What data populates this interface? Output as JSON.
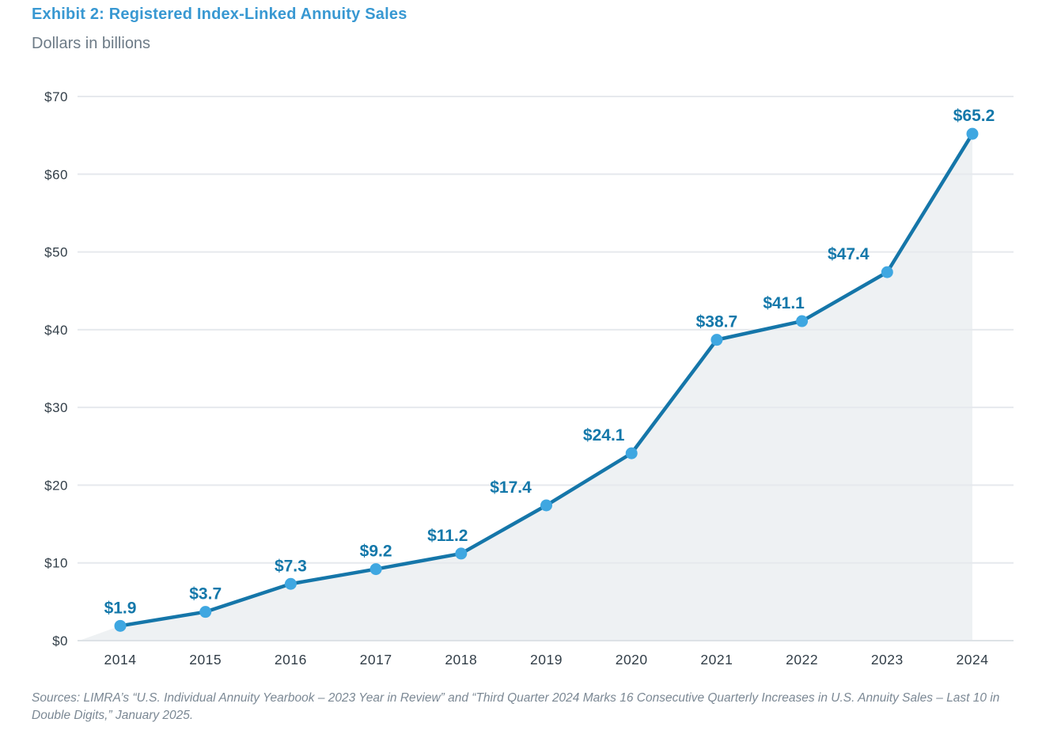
{
  "header": {
    "title": "Exhibit 2: Registered Index-Linked Annuity Sales",
    "subtitle": "Dollars in billions"
  },
  "chart_data": {
    "type": "line",
    "title": "Exhibit 2: Registered Index-Linked Annuity Sales",
    "subtitle": "Dollars in billions",
    "categories": [
      "2014",
      "2015",
      "2016",
      "2017",
      "2018",
      "2019",
      "2020",
      "2021",
      "2022",
      "2023",
      "2024"
    ],
    "values": [
      1.9,
      3.7,
      7.3,
      9.2,
      11.2,
      17.4,
      24.1,
      38.7,
      41.1,
      47.4,
      65.2
    ],
    "point_labels": [
      "$1.9",
      "$3.7",
      "$7.3",
      "$9.2",
      "$11.2",
      "$17.4",
      "$24.1",
      "$38.7",
      "$41.1",
      "$47.4",
      "$65.2"
    ],
    "y_tick_values": [
      0,
      10,
      20,
      30,
      40,
      50,
      60,
      70
    ],
    "y_tick_labels": [
      "$0",
      "$10",
      "$20",
      "$30",
      "$40",
      "$50",
      "$60",
      "$70"
    ],
    "ylim": [
      0,
      70
    ],
    "xlabel": "",
    "ylabel": "",
    "grid": "horizontal",
    "legend": "none",
    "area_fill": true,
    "colors": {
      "line": "#1576a9",
      "marker": "#3fa7e1",
      "area": "#eef1f3",
      "grid": "#e6e9ed",
      "baseline": "#dde2e6",
      "tick_text": "#323e48",
      "point_label_text": "#1478aa",
      "title": "#3898d2",
      "subtitle": "#6d7b87"
    }
  },
  "footer": {
    "source": "Sources: LIMRA’s “U.S. Individual Annuity Yearbook – 2023 Year in Review” and “Third Quarter 2024 Marks 16 Consecutive Quarterly Increases in U.S. Annuity Sales – Last 10 in Double Digits,” January 2025."
  }
}
